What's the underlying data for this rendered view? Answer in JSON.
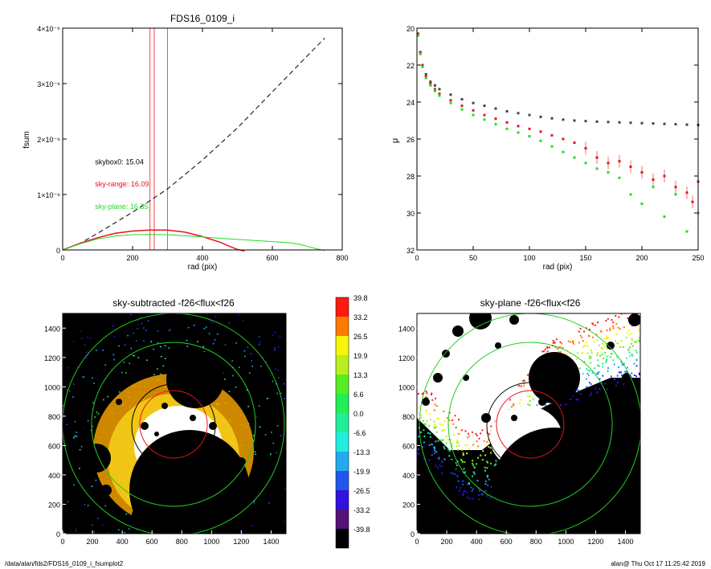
{
  "footer": {
    "path": "/data/alan/fds2/FDS16_0109_i_fsumplot2",
    "stamp": "alan@  Thu Oct 17 11:25:42 2019"
  },
  "colors": {
    "black": "#000000",
    "red": "#e8141b",
    "green": "#22dd22",
    "gray": "#666666"
  },
  "chart_data": [
    {
      "type": "line",
      "title": "FDS16_0109_i",
      "xlabel": "rad (pix)",
      "ylabel": "fsum",
      "xlim": [
        0,
        800
      ],
      "ylim": [
        0,
        4e-06
      ],
      "xticks": [
        "0",
        "200",
        "400",
        "600",
        "800"
      ],
      "yticks": [
        "0",
        "1×10⁻⁶",
        "2×10⁻⁶",
        "3×10⁻⁶",
        "4×10⁻⁶"
      ],
      "annotations": [
        {
          "text": "skybox0: 15.04",
          "color": "#000000",
          "x": 180,
          "y": 1.6e-06
        },
        {
          "text": "sky-range: 16.09",
          "color": "#e8141b",
          "x": 180,
          "y": 1.2e-06
        },
        {
          "text": "sky-plane: 16.35",
          "color": "#22dd22",
          "x": 180,
          "y": 8e-07
        }
      ],
      "vlines": [
        {
          "x": 250,
          "color": "#e8141b"
        },
        {
          "x": 262,
          "color": "#e8141b"
        },
        {
          "x": 300,
          "color": "#666666"
        }
      ],
      "series": [
        {
          "color": "#000000",
          "dashed": true,
          "x": [
            0,
            50,
            100,
            200,
            300,
            400,
            500,
            600,
            700,
            750
          ],
          "y": [
            0,
            1.2e-07,
            3e-07,
            6.8e-07,
            1.1e-06,
            1.62e-06,
            2.2e-06,
            2.85e-06,
            3.5e-06,
            3.82e-06
          ]
        },
        {
          "color": "#e8141b",
          "dashed": false,
          "x": [
            0,
            50,
            100,
            150,
            200,
            250,
            300,
            350,
            400,
            450,
            480,
            500,
            520
          ],
          "y": [
            0,
            1.2e-07,
            2.2e-07,
            3e-07,
            3.4e-07,
            3.6e-07,
            3.6e-07,
            3.2e-07,
            2.4e-07,
            1.4e-07,
            6e-08,
            1e-08,
            -2e-08
          ]
        },
        {
          "color": "#22dd22",
          "dashed": false,
          "x": [
            0,
            50,
            100,
            150,
            200,
            250,
            300,
            350,
            400,
            450,
            500,
            550,
            600,
            650,
            680,
            720,
            750
          ],
          "y": [
            0,
            1.1e-07,
            2e-07,
            2.5e-07,
            2.75e-07,
            2.8e-07,
            2.75e-07,
            2.55e-07,
            2.35e-07,
            2.1e-07,
            1.9e-07,
            1.7e-07,
            1.5e-07,
            1.3e-07,
            1e-07,
            3e-08,
            -1e-08
          ]
        }
      ]
    },
    {
      "type": "scatter",
      "xlabel": "rad (pix)",
      "ylabel": "μ",
      "xlim": [
        0,
        250
      ],
      "ylim": [
        32,
        20
      ],
      "xticks": [
        "0",
        "50",
        "100",
        "150",
        "200",
        "250"
      ],
      "yticks": [
        "20",
        "22",
        "24",
        "26",
        "28",
        "30",
        "32"
      ],
      "series": [
        {
          "color": "#444444",
          "x": [
            1,
            3,
            5,
            8,
            12,
            16,
            20,
            30,
            40,
            50,
            60,
            70,
            80,
            90,
            100,
            110,
            120,
            130,
            140,
            150,
            160,
            170,
            180,
            190,
            200,
            210,
            220,
            230,
            240,
            250
          ],
          "y": [
            20.3,
            21.3,
            22.0,
            22.5,
            22.9,
            23.1,
            23.3,
            23.6,
            23.85,
            24.05,
            24.2,
            24.35,
            24.5,
            24.6,
            24.7,
            24.8,
            24.88,
            24.95,
            25.0,
            25.03,
            25.06,
            25.08,
            25.1,
            25.12,
            25.14,
            25.16,
            25.18,
            25.2,
            25.22,
            25.24
          ]
        },
        {
          "color": "#e8141b",
          "x": [
            1,
            3,
            5,
            8,
            12,
            16,
            20,
            30,
            40,
            50,
            60,
            70,
            80,
            90,
            100,
            110,
            120,
            130,
            140,
            150,
            160,
            170,
            180,
            190,
            200,
            210,
            220,
            230,
            240,
            245,
            250
          ],
          "y": [
            20.3,
            21.3,
            22.0,
            22.6,
            23.0,
            23.3,
            23.55,
            23.9,
            24.2,
            24.45,
            24.7,
            24.9,
            25.1,
            25.3,
            25.45,
            25.6,
            25.8,
            26.0,
            26.2,
            26.5,
            27.0,
            27.3,
            27.2,
            27.5,
            27.8,
            28.2,
            28.0,
            28.6,
            28.9,
            29.4,
            28.3
          ]
        },
        {
          "color": "#22dd22",
          "x": [
            1,
            3,
            5,
            8,
            12,
            16,
            20,
            30,
            40,
            50,
            60,
            70,
            80,
            90,
            100,
            110,
            120,
            130,
            140,
            150,
            160,
            170,
            180,
            190,
            200,
            210,
            220,
            230,
            240,
            250
          ],
          "y": [
            20.4,
            21.4,
            22.1,
            22.7,
            23.1,
            23.4,
            23.65,
            24.05,
            24.4,
            24.7,
            24.95,
            25.2,
            25.45,
            25.65,
            25.85,
            26.1,
            26.4,
            26.7,
            27.0,
            27.3,
            27.6,
            27.8,
            28.1,
            29.0,
            29.5,
            28.6,
            30.2,
            29.0,
            31.0,
            30.0
          ]
        }
      ]
    },
    {
      "type": "heatmap",
      "title": "sky-subtracted -f26<flux<f26",
      "xlim": [
        0,
        1500
      ],
      "ylim": [
        0,
        1500
      ],
      "xticks": [
        "0",
        "200",
        "400",
        "600",
        "800",
        "1000",
        "1200",
        "1400"
      ],
      "yticks": [
        "0",
        "200",
        "400",
        "600",
        "800",
        "1000",
        "1200",
        "1400"
      ]
    },
    {
      "type": "heatmap",
      "title": "sky-plane -f26<flux<f26",
      "xlim": [
        0,
        1500
      ],
      "ylim": [
        0,
        1500
      ],
      "xticks": [
        "0",
        "200",
        "400",
        "600",
        "800",
        "1000",
        "1200",
        "1400"
      ],
      "yticks": [
        "0",
        "200",
        "400",
        "600",
        "800",
        "1000",
        "1200",
        "1400"
      ]
    }
  ],
  "colorbar": {
    "labels": [
      "39.8",
      "33.2",
      "26.5",
      "19.9",
      "13.3",
      "6.6",
      "0.0",
      "-6.6",
      "-13.3",
      "-19.9",
      "-26.5",
      "-33.2",
      "-39.8"
    ],
    "colors": [
      "#ff1a10",
      "#ff7a00",
      "#f6f60c",
      "#bbee1e",
      "#55ee22",
      "#22ee55",
      "#22ee99",
      "#22eedd",
      "#22aaee",
      "#2255ee",
      "#3311dd",
      "#551177",
      "#000000"
    ]
  }
}
